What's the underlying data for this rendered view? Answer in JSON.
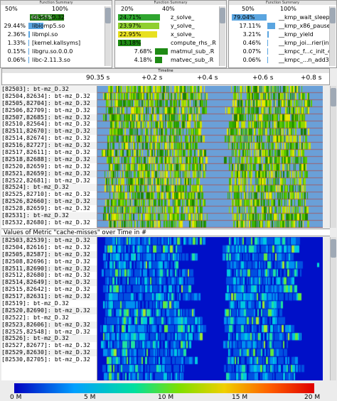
{
  "panels": [
    {
      "title": "Function Summary",
      "axis": [
        "50%",
        "100%"
      ],
      "rows": [
        {
          "value": "66.56%",
          "pct": 66.56,
          "color": "#1f7a10",
          "name": "bt-mz_D.32",
          "value_on_bar": true
        },
        {
          "value": "29.44%",
          "pct": 29.44,
          "color": "#5aa5e0",
          "name": "libiomp5.so"
        },
        {
          "value": "2.36%",
          "pct": 2.36,
          "color": "#5aa5e0",
          "name": "libmpi.so"
        },
        {
          "value": "1.33%",
          "pct": 1.33,
          "color": "#5aa5e0",
          "name": "[kernel.kallsyms]"
        },
        {
          "value": "0.15%",
          "pct": 0.15,
          "color": "#5aa5e0",
          "name": "libgru.so.0.0.0"
        },
        {
          "value": "0.06%",
          "pct": 0.06,
          "color": "#5aa5e0",
          "name": "libc-2.11.3.so"
        }
      ]
    },
    {
      "title": "Function Summary",
      "axis": [
        "20%",
        "40%"
      ],
      "rows": [
        {
          "value": "24.71%",
          "pct": 24.71,
          "color": "#2fa52f",
          "name": "z_solve_",
          "value_on_bar": true
        },
        {
          "value": "23.97%",
          "pct": 23.97,
          "color": "#8fcf2f",
          "name": "y_solve_",
          "value_on_bar": true
        },
        {
          "value": "22.95%",
          "pct": 22.95,
          "color": "#e8e020",
          "name": "x_solve_",
          "value_on_bar": true
        },
        {
          "value": "13.18%",
          "pct": 13.18,
          "color": "#1e8a14",
          "name": "compute_rhs_.R",
          "value_on_bar": true
        },
        {
          "value": "7.68%",
          "pct": 7.68,
          "color": "#1e8a14",
          "name": "matmul_sub_.R"
        },
        {
          "value": "4.18%",
          "pct": 4.18,
          "color": "#1e8a14",
          "name": "matvec_sub_.R"
        }
      ]
    },
    {
      "title": "Function Summary",
      "axis": [
        "50%",
        "100%"
      ],
      "rows": [
        {
          "value": "79.04%",
          "pct": 79.04,
          "color": "#5aa5e0",
          "name": "__kmp_wait_sleep",
          "value_on_bar": true
        },
        {
          "value": "17.11%",
          "pct": 17.11,
          "color": "#5aa5e0",
          "name": "__kmp_x86_pause"
        },
        {
          "value": "3.21%",
          "pct": 3.21,
          "color": "#5aa5e0",
          "name": "__kmp_yield"
        },
        {
          "value": "0.46%",
          "pct": 0.46,
          "color": "#5aa5e0",
          "name": "__kmp_joi...rier(int)"
        },
        {
          "value": "0.07%",
          "pct": 0.07,
          "color": "#5aa5e0",
          "name": "__kmpc_f...c_init_4"
        },
        {
          "value": "0.06%",
          "pct": 0.06,
          "color": "#5aa5e0",
          "name": "__kmpc_...n_add32"
        }
      ]
    }
  ],
  "timeline": {
    "title": "Timeline",
    "ticks": [
      "90.35 s",
      "+0.2 s",
      "+0.4 s",
      "+0.6 s",
      "+0.8 s"
    ]
  },
  "process_labels_top": [
    "[82503]: bt-mz_D.32",
    "[82504,82634]: bt-mz_D.32",
    "[82505,82704]: bt-mz_D.32",
    "[82506,82709]: bt-mz_D.32",
    "[82507,82685]: bt-mz_D.32",
    "[82510,82564]: bt-mz_D.32",
    "[82511,82670]: bt-mz_D.32",
    "[82514,82674]: bt-mz_D.32",
    "[82516,82727]: bt-mz_D.32",
    "[82517,82611]: bt-mz_D.32",
    "[82518,82688]: bt-mz_D.32",
    "[82520,82659]: bt-mz_D.32",
    "[82521,82659]: bt-mz_D.32",
    "[82522,82681]: bt-mz_D.32",
    "[82524]: bt-mz_D.32",
    "[82525,82710]: bt-mz_D.32",
    "[82526,82660]: bt-mz_D.32",
    "[82528,82659]: bt-mz_D.32",
    "[82531]: bt-mz_D.32",
    "[82532,82680]: bt-mz_D.32"
  ],
  "metric_title": "Values of Metric \"cache-misses\" over Time in #",
  "process_labels_bottom": [
    "[82503,82539]: bt-mz_D.32",
    "[82504,82616]: bt-mz_D.32",
    "[82505,82587]: bt-mz_D.32",
    "[82508,82696]: bt-mz_D.32",
    "[82511,82690]: bt-mz_D.32",
    "[82512,82680]: bt-mz_D.32",
    "[82514,82649]: bt-mz_D.32",
    "[82515,82642]: bt-mz_D.32",
    "[82517,82631]: bt-mz_D.32",
    "[82519]: bt-mz_D.32",
    "[82520,82690]: bt-mz_D.32",
    "[82522]: bt-mz_D.32",
    "[82523,82606]: bt-mz_D.32",
    "[82525,82548]: bt-mz_D.32",
    "[82526]: bt-mz_D.32",
    "[82527,82677]: bt-mz_D.32",
    "[82529,82630]: bt-mz_D.32",
    "[82530,82705]: bt-mz_D.32"
  ],
  "legend": {
    "ticks": [
      "0 M",
      "5 M",
      "10 M",
      "15 M",
      "20 M"
    ],
    "max": 20
  },
  "colors": {
    "green": "#28a000",
    "yellow": "#d8e000",
    "blue_idle": "#6aa0d8",
    "heat_low": "#0000b0"
  }
}
